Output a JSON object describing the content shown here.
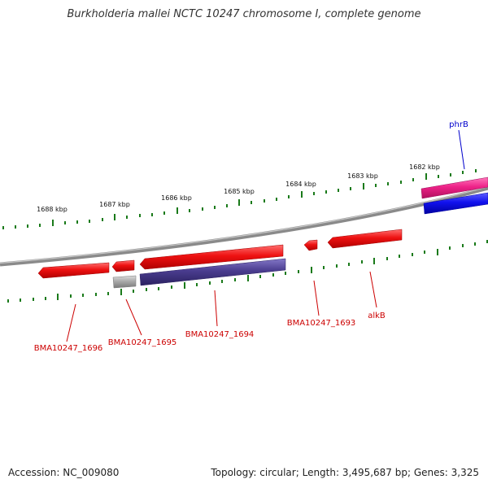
{
  "title": "Burkholderia mallei NCTC 10247 chromosome I, complete genome",
  "accession_label": "Accession:",
  "accession": "NC_009080",
  "topology_label": "Topology:",
  "topology": "circular",
  "length_label": "Length:",
  "length": "3,495,687 bp",
  "genes_label": "Genes:",
  "genes": "3,325",
  "scale_labels": [
    "1688 kbp",
    "1687 kbp",
    "1686 kbp",
    "1685 kbp",
    "1684 kbp",
    "1683 kbp",
    "1682 kbp"
  ],
  "gene_labels": [
    {
      "text": "phrB",
      "color": "#0000cc"
    },
    {
      "text": "BMA10247_1696",
      "color": "#cc0000"
    },
    {
      "text": "BMA10247_1695",
      "color": "#cc0000"
    },
    {
      "text": "BMA10247_1694",
      "color": "#cc0000"
    },
    {
      "text": "BMA10247_1693",
      "color": "#cc0000"
    },
    {
      "text": "alkB",
      "color": "#cc0000"
    }
  ],
  "colors": {
    "backbone": "#8a8a8a",
    "tick": "#1a7a1a",
    "cds": "#ee1111",
    "gene_blue": "#1111ee",
    "gene_magenta": "#ee2288",
    "gene_purple": "#4a3d8f",
    "gene_gray": "#aaaaaa"
  }
}
